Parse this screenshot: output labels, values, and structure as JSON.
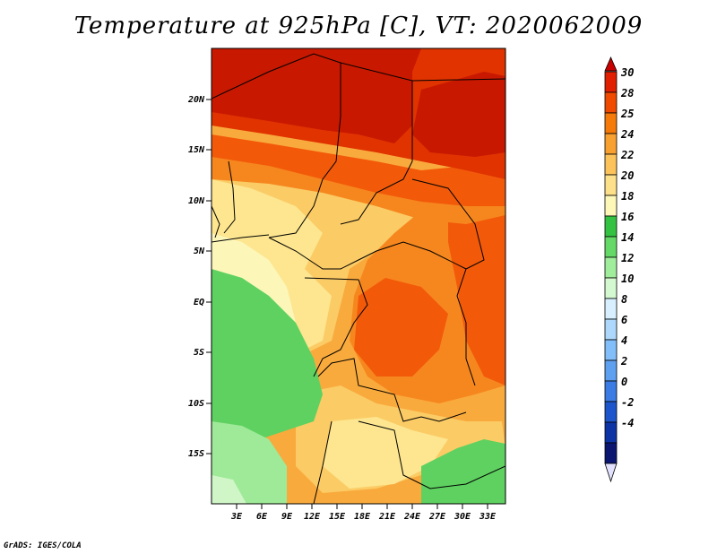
{
  "title": "Temperature at 925hPa [C], VT: 2020062009",
  "credit": "GrADS: IGES/COLA",
  "map": {
    "lat_labels": [
      "20N",
      "15N",
      "10N",
      "5N",
      "EQ",
      "5S",
      "10S",
      "15S"
    ],
    "lon_labels": [
      "3E",
      "6E",
      "9E",
      "12E",
      "15E",
      "18E",
      "21E",
      "24E",
      "27E",
      "30E",
      "33E"
    ]
  },
  "colorbar": {
    "labels": [
      "30",
      "28",
      "25",
      "24",
      "22",
      "20",
      "18",
      "16",
      "14",
      "12",
      "10",
      "8",
      "6",
      "4",
      "2",
      "0",
      "-2",
      "-4"
    ],
    "colors": [
      "#c80000",
      "#e02000",
      "#f04a00",
      "#f57a0a",
      "#f8a030",
      "#fbc35a",
      "#fde08a",
      "#fdf7b8",
      "#34c242",
      "#65d968",
      "#a0ee9c",
      "#d4f8cf",
      "#d8efff",
      "#aed8fb",
      "#82befa",
      "#5ea0f0",
      "#3a7ce4",
      "#1d56cc",
      "#0c34a4",
      "#0a1670",
      "#e2e2ff"
    ]
  },
  "legend_colors": {
    "c30": "#c81800",
    "c28": "#e03300",
    "c25": "#f25a0a",
    "c24": "#f6871e",
    "c22": "#f9aa3d",
    "c20": "#fbcb65",
    "c18": "#fde68f",
    "c16": "#fdf6b9",
    "c14": "#5ed160",
    "c12": "#9eea98",
    "c10": "#d0f6c8"
  }
}
